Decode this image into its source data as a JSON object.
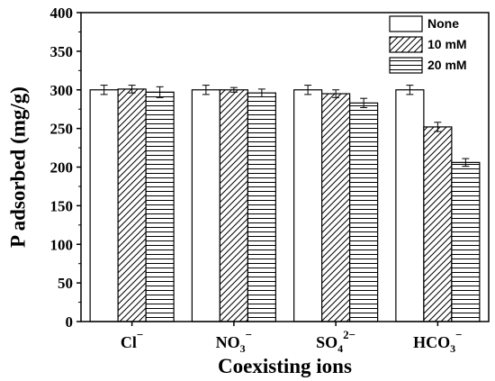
{
  "chart_data": {
    "type": "bar",
    "xlabel": "Coexisting ions",
    "ylabel": "P adsorbed (mg/g)",
    "ylim": [
      0,
      400
    ],
    "yticks": [
      0,
      50,
      100,
      150,
      200,
      250,
      300,
      350,
      400
    ],
    "categories": [
      {
        "base": "Cl",
        "sub": "",
        "sup": "−"
      },
      {
        "base": "NO",
        "sub": "3",
        "sup": "−"
      },
      {
        "base": "SO",
        "sub": "4",
        "sup": "2−"
      },
      {
        "base": "HCO",
        "sub": "3",
        "sup": "−"
      }
    ],
    "series": [
      {
        "name": "None",
        "pattern": "none",
        "values": [
          300,
          300,
          300,
          300
        ],
        "errors": [
          6,
          6,
          6,
          6
        ]
      },
      {
        "name": "10 mM",
        "pattern": "diagonal",
        "values": [
          301,
          300,
          295,
          252
        ],
        "errors": [
          5,
          3,
          5,
          6
        ]
      },
      {
        "name": "20 mM",
        "pattern": "horizontal",
        "values": [
          297,
          296,
          283,
          206
        ],
        "errors": [
          7,
          5,
          6,
          5
        ]
      }
    ],
    "legend_position": "top-right",
    "grid": false
  }
}
